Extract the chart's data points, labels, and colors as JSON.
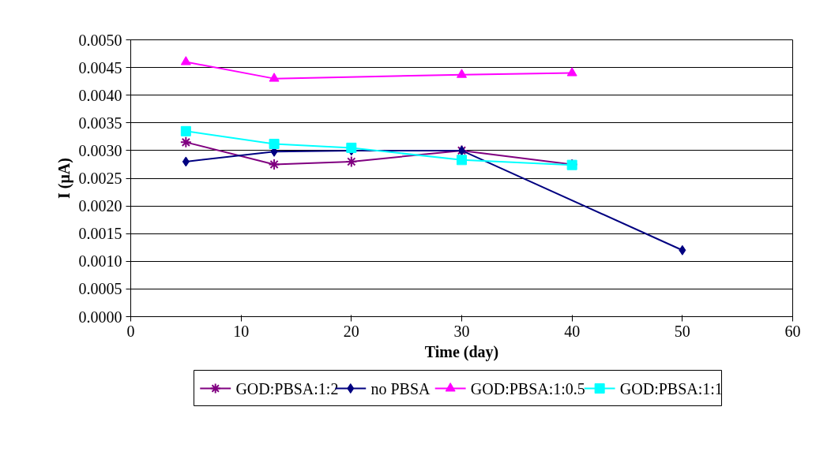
{
  "chart_data": {
    "type": "line",
    "xlabel": "Time (day)",
    "ylabel": "I (μA)",
    "xlim": [
      0,
      60
    ],
    "xticks": [
      0,
      10,
      20,
      30,
      40,
      50,
      60
    ],
    "ylim": [
      0,
      0.005
    ],
    "yticks": [
      {
        "value": 0,
        "label": "0.0000"
      },
      {
        "value": 0.0005,
        "label": "0.0005"
      },
      {
        "value": 0.001,
        "label": "0.0010"
      },
      {
        "value": 0.0015,
        "label": "0.0015"
      },
      {
        "value": 0.002,
        "label": "0.0020"
      },
      {
        "value": 0.0025,
        "label": "0.0025"
      },
      {
        "value": 0.003,
        "label": "0.0030"
      },
      {
        "value": 0.0035,
        "label": "0.0035"
      },
      {
        "value": 0.004,
        "label": "0.0040"
      },
      {
        "value": 0.0045,
        "label": "0.0045"
      },
      {
        "value": 0.005,
        "label": "0.0050"
      }
    ],
    "grid": "y",
    "legend": "bottom",
    "series": [
      {
        "name": "GOD:PBSA:1:2",
        "color": "#800080",
        "marker": "cross",
        "x": [
          5,
          13,
          20,
          30,
          40
        ],
        "values": [
          0.00315,
          0.00275,
          0.0028,
          0.003,
          0.00275
        ]
      },
      {
        "name": "no PBSA",
        "color": "#000080",
        "marker": "diamond",
        "x": [
          5,
          13,
          20,
          30,
          50
        ],
        "values": [
          0.0028,
          0.00298,
          0.003,
          0.003,
          0.0012
        ]
      },
      {
        "name": "GOD:PBSA:1:0.5",
        "color": "#ff00ff",
        "marker": "triangle",
        "x": [
          5,
          13,
          30,
          40
        ],
        "values": [
          0.0046,
          0.0043,
          0.00437,
          0.0044
        ]
      },
      {
        "name": "GOD:PBSA:1:1",
        "color": "#00ffff",
        "marker": "square",
        "x": [
          5,
          13,
          20,
          30,
          40
        ],
        "values": [
          0.00335,
          0.00312,
          0.00305,
          0.00283,
          0.00274
        ]
      }
    ]
  }
}
